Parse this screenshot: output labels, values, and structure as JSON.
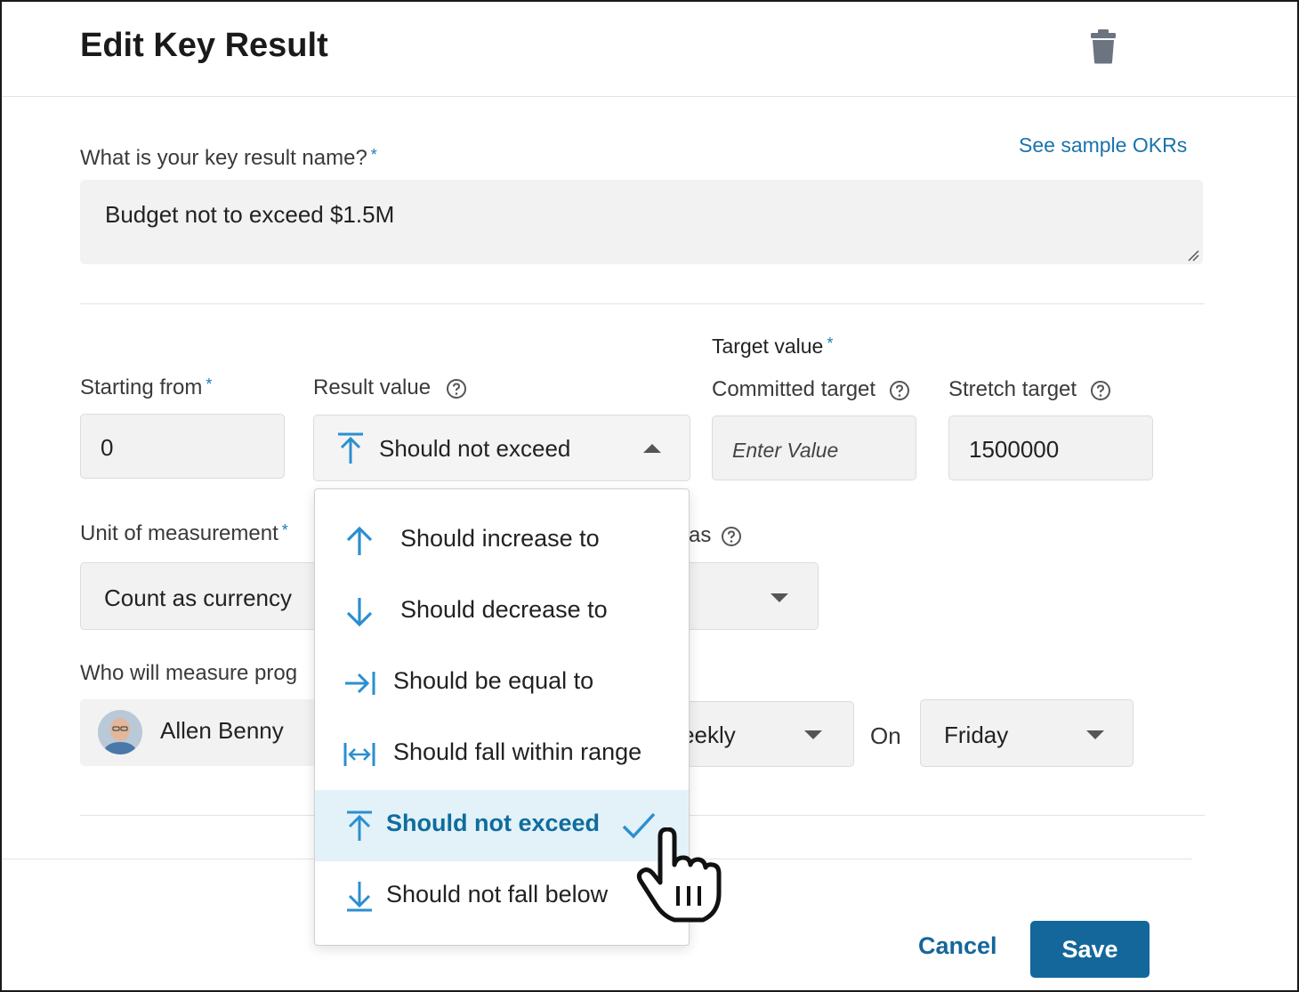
{
  "dialog": {
    "title": "Edit Key Result",
    "delete_icon": "trash-icon"
  },
  "key_result_name": {
    "label": "What is your key result name?",
    "required_mark": "*",
    "sample_link": "See sample OKRs",
    "value": "Budget not to exceed $1.5M"
  },
  "starting_from": {
    "label": "Starting from",
    "required_mark": "*",
    "value": "0"
  },
  "result_value": {
    "label": "Result value",
    "selected": "Should not exceed",
    "options": [
      {
        "label": "Should increase to",
        "icon": "arrow-up-icon"
      },
      {
        "label": "Should decrease to",
        "icon": "arrow-down-icon"
      },
      {
        "label": "Should be equal to",
        "icon": "arrow-right-to-bar-icon"
      },
      {
        "label": "Should fall within range",
        "icon": "range-arrows-icon"
      },
      {
        "label": "Should not exceed",
        "icon": "arrow-up-bar-icon",
        "selected": true
      },
      {
        "label": "Should not fall below",
        "icon": "arrow-down-bar-icon"
      }
    ]
  },
  "target_value": {
    "label": "Target value",
    "required_mark": "*",
    "committed_label": "Committed target",
    "committed_placeholder": "Enter Value",
    "stretch_label": "Stretch target",
    "stretch_value": "1500000"
  },
  "unit": {
    "label": "Unit of measurement",
    "required_mark": "*",
    "value": "Count as currency",
    "partial_label": "as"
  },
  "measure": {
    "label": "Who will measure prog",
    "owner": "Allen Benny",
    "frequency": "Weekly",
    "on_label": "On",
    "day": "Friday"
  },
  "footer": {
    "cancel": "Cancel",
    "save": "Save"
  },
  "colors": {
    "accent": "#14679a",
    "icon_blue": "#2b8fd0",
    "selected_bg": "#e3f2f8"
  }
}
